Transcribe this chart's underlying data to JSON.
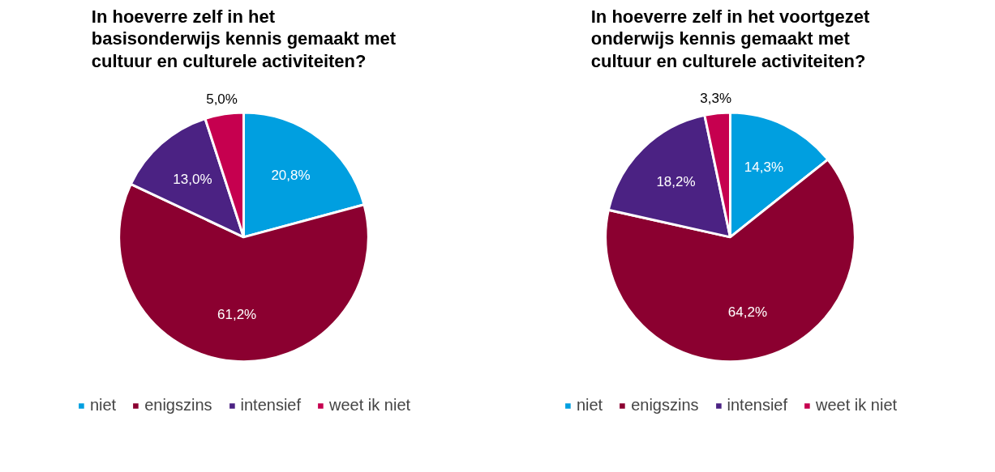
{
  "chart_data": [
    {
      "type": "pie",
      "title": "In hoeverre zelf in het basisonderwijs kennis gemaakt met cultuur en culturele activiteiten?",
      "categories": [
        "niet",
        "enigszins",
        "intensief",
        "weet ik niet"
      ],
      "values": [
        20.8,
        61.2,
        13.0,
        5.0
      ],
      "colors": [
        "#009fe0",
        "#8b0030",
        "#4b2283",
        "#c6004f"
      ],
      "value_labels": [
        "20,8%",
        "61,2%",
        "13,0%",
        "5,0%"
      ],
      "legend": "bottom"
    },
    {
      "type": "pie",
      "title": "In hoeverre zelf in het voortgezet onderwijs kennis gemaakt met cultuur en culturele activiteiten?",
      "categories": [
        "niet",
        "enigszins",
        "intensief",
        "weet ik niet"
      ],
      "values": [
        14.3,
        64.2,
        18.2,
        3.3
      ],
      "colors": [
        "#009fe0",
        "#8b0030",
        "#4b2283",
        "#c6004f"
      ],
      "value_labels": [
        "14,3%",
        "64,2%",
        "18,2%",
        "3,3%"
      ],
      "legend": "bottom"
    }
  ]
}
